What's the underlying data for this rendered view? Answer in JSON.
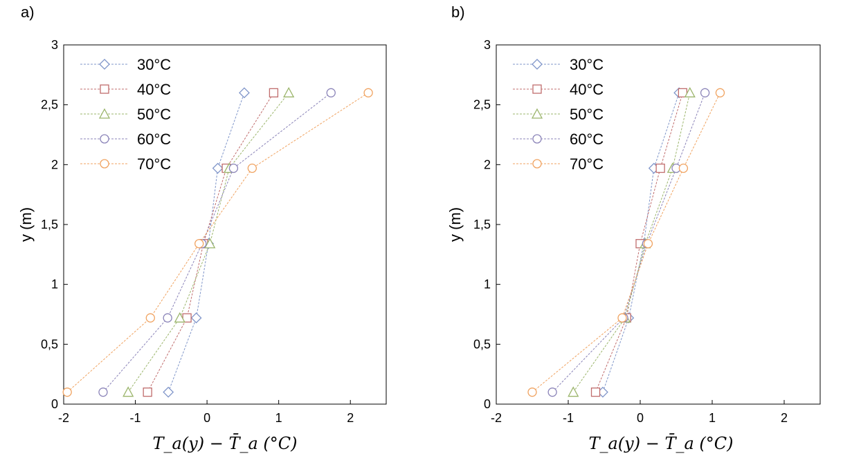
{
  "chart_data": [
    {
      "type": "scatter",
      "panel_label": "a)",
      "title": "",
      "xlabel": "T_a(y) − T̄_a (°C)",
      "ylabel": "y (m)",
      "xlim": [
        -2,
        2.5
      ],
      "ylim": [
        0,
        3
      ],
      "xticks": [
        -2,
        -1,
        0,
        1,
        2
      ],
      "xtick_labels": [
        "-2",
        "-1",
        "0",
        "1",
        "2"
      ],
      "yticks": [
        0,
        0.5,
        1,
        1.5,
        2,
        2.5,
        3
      ],
      "ytick_labels": [
        "0",
        "0,5",
        "1",
        "1,5",
        "2",
        "2,5",
        "3"
      ],
      "legend_position": "top-left",
      "grid": false,
      "y": [
        0.1,
        0.72,
        1.34,
        1.97,
        2.6
      ],
      "series": [
        {
          "name": "30°C",
          "marker": "diamond",
          "color": "#7F95C9",
          "x": [
            -0.54,
            -0.15,
            0.02,
            0.15,
            0.52
          ]
        },
        {
          "name": "40°C",
          "marker": "square",
          "color": "#C06C6C",
          "x": [
            -0.83,
            -0.28,
            -0.05,
            0.27,
            0.93
          ]
        },
        {
          "name": "50°C",
          "marker": "triangle",
          "color": "#9BB56B",
          "x": [
            -1.1,
            -0.38,
            0.04,
            0.31,
            1.14
          ]
        },
        {
          "name": "60°C",
          "marker": "circle",
          "color": "#8A83B8",
          "x": [
            -1.45,
            -0.55,
            -0.07,
            0.37,
            1.73
          ]
        },
        {
          "name": "70°C",
          "marker": "circle",
          "color": "#F0A25F",
          "x": [
            -1.95,
            -0.79,
            -0.11,
            0.63,
            2.25
          ]
        }
      ]
    },
    {
      "type": "scatter",
      "panel_label": "b)",
      "title": "",
      "xlabel": "T_a(y) − T̄_a (°C)",
      "ylabel": "y (m)",
      "xlim": [
        -2,
        2.5
      ],
      "ylim": [
        0,
        3
      ],
      "xticks": [
        -2,
        -1,
        0,
        1,
        2
      ],
      "xtick_labels": [
        "-2",
        "-1",
        "0",
        "1",
        "2"
      ],
      "yticks": [
        0,
        0.5,
        1,
        1.5,
        2,
        2.5,
        3
      ],
      "ytick_labels": [
        "0",
        "0,5",
        "1",
        "1,5",
        "2",
        "2,5",
        "3"
      ],
      "legend_position": "top-left",
      "grid": false,
      "y": [
        0.1,
        0.72,
        1.34,
        1.97,
        2.6
      ],
      "series": [
        {
          "name": "30°C",
          "marker": "diamond",
          "color": "#7F95C9",
          "x": [
            -0.52,
            -0.16,
            0.05,
            0.19,
            0.54
          ]
        },
        {
          "name": "40°C",
          "marker": "square",
          "color": "#C06C6C",
          "x": [
            -0.62,
            -0.19,
            0.0,
            0.28,
            0.59
          ]
        },
        {
          "name": "50°C",
          "marker": "triangle",
          "color": "#9BB56B",
          "x": [
            -0.93,
            -0.21,
            0.07,
            0.45,
            0.69
          ]
        },
        {
          "name": "60°C",
          "marker": "circle",
          "color": "#8A83B8",
          "x": [
            -1.22,
            -0.23,
            0.09,
            0.5,
            0.9
          ]
        },
        {
          "name": "70°C",
          "marker": "circle",
          "color": "#F0A25F",
          "x": [
            -1.5,
            -0.25,
            0.11,
            0.6,
            1.11
          ]
        }
      ]
    }
  ]
}
